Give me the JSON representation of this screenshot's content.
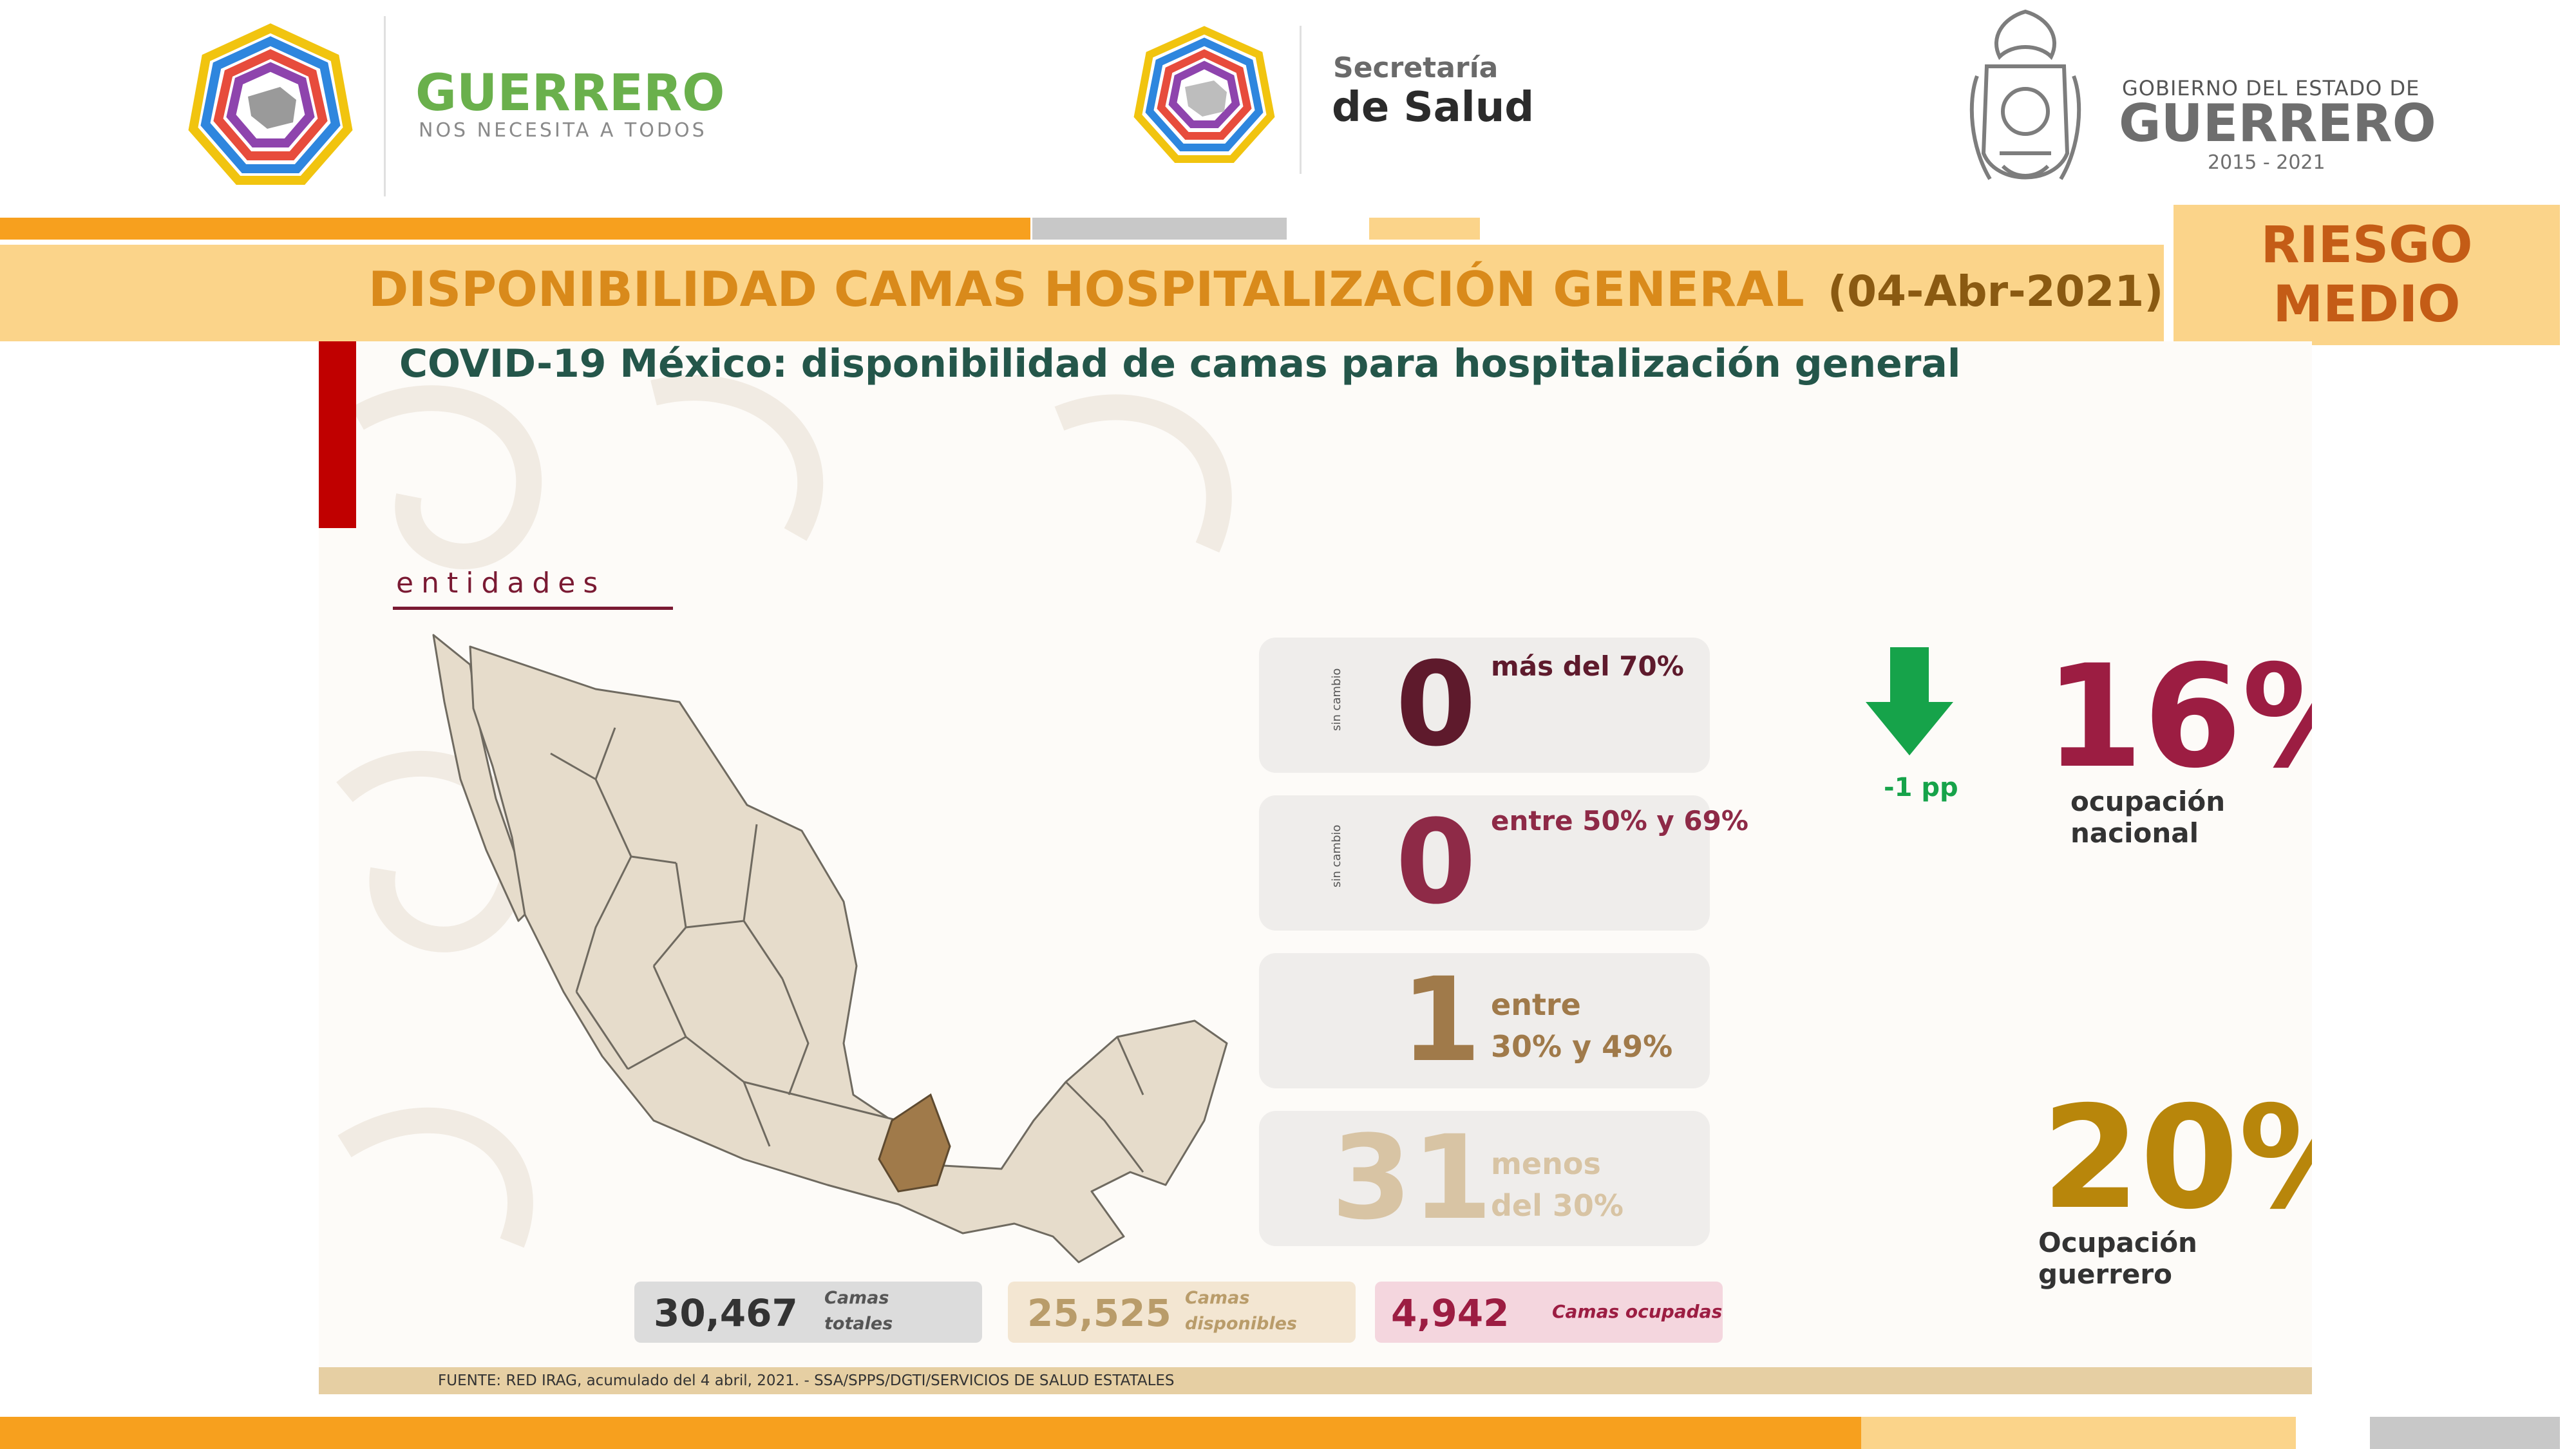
{
  "header": {
    "brand1": {
      "title": "GUERRERO",
      "subtitle": "NOS NECESITA A TODOS"
    },
    "brand2": {
      "line1": "Secretaría",
      "line2": "de Salud"
    },
    "brand3": {
      "line1": "GOBIERNO DEL ESTADO DE",
      "line2": "GUERRERO",
      "line3": "2015 - 2021"
    }
  },
  "title_bar": {
    "title": "DISPONIBILIDAD CAMAS HOSPITALIZACIÓN GENERAL",
    "date": "(04-Abr-2021)"
  },
  "risk": {
    "line1": "RIESGO",
    "line2": "MEDIO"
  },
  "slide": {
    "heading": "COVID-19 México: disponibilidad de camas para hospitalización general",
    "section_label": "entidades",
    "categories": [
      {
        "count": "0",
        "label": "más del 70%",
        "note": "sin cambio",
        "color": "#5e1a2c"
      },
      {
        "count": "0",
        "label": "entre 50% y 69%",
        "note": "sin cambio",
        "color": "#8e2a47"
      },
      {
        "count": "1",
        "label_line1": "entre",
        "label_line2": "30% y 49%",
        "color": "#a07a4a"
      },
      {
        "count": "31",
        "label_line1": "menos",
        "label_line2": "del 30%",
        "color": "#d8c4a4"
      }
    ],
    "national": {
      "change": "-1 pp",
      "value": "16%",
      "label": "ocupación nacional",
      "value_color": "#9c1d42",
      "arrow_color": "#16a34a"
    },
    "guerrero": {
      "value": "20%",
      "label": "Ocupación guerrero",
      "value_color": "#b8860b"
    },
    "totals": [
      {
        "value": "30,467",
        "label_line1": "Camas",
        "label_line2": "totales"
      },
      {
        "value": "25,525",
        "label_line1": "Camas",
        "label_line2": "disponibles"
      },
      {
        "value": "4,942",
        "label": "Camas ocupadas"
      }
    ],
    "source": "FUENTE: RED IRAG, acumulado del 4 abril, 2021. -  SSA/SPPS/DGTI/SERVICIOS DE SALUD ESTATALES"
  },
  "colors": {
    "orange": "#f7a01e",
    "light_yellow": "#fbd48a",
    "grey": "#c8c8c8",
    "beige_footer": "#e6cfa3"
  }
}
